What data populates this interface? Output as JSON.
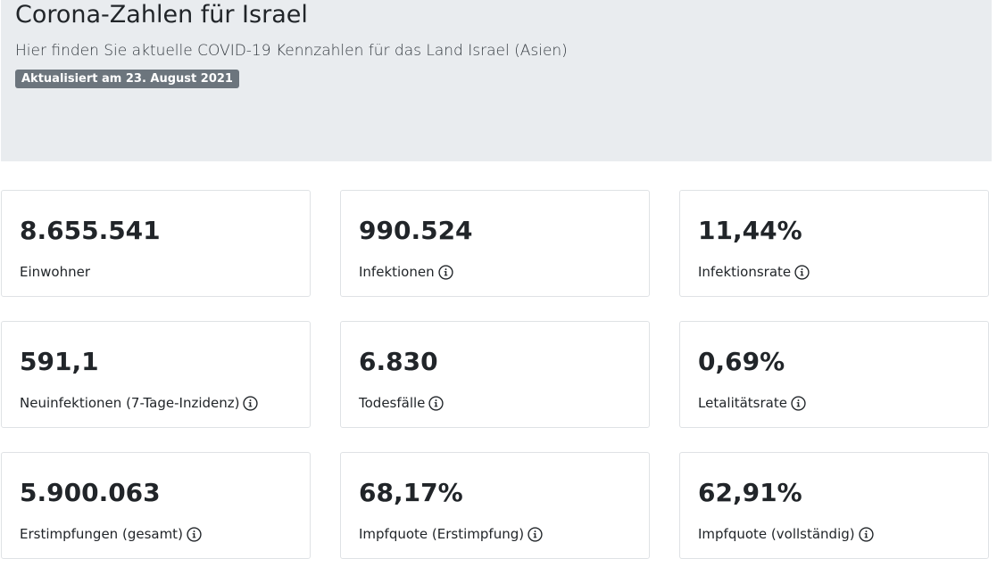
{
  "header": {
    "title": "Corona-Zahlen für Israel",
    "subtitle": "Hier finden Sie aktuelle COVID-19 Kennzahlen für das Land Israel (Asien)",
    "badge": "Aktualisiert am 23. August 2021"
  },
  "cards": [
    {
      "value": "8.655.541",
      "label": "Einwohner",
      "info_icon": false
    },
    {
      "value": "990.524",
      "label": "Infektionen",
      "info_icon": true
    },
    {
      "value": "11,44%",
      "label": "Infektionsrate",
      "info_icon": true
    },
    {
      "value": "591,1",
      "label": "Neuinfektionen (7-Tage-Inzidenz)",
      "info_icon": true
    },
    {
      "value": "6.830",
      "label": "Todesfälle",
      "info_icon": true
    },
    {
      "value": "0,69%",
      "label": "Letalitätsrate",
      "info_icon": true
    },
    {
      "value": "5.900.063",
      "label": "Erstimpfungen (gesamt)",
      "info_icon": true
    },
    {
      "value": "68,17%",
      "label": "Impfquote (Erstimpfung)",
      "info_icon": true
    },
    {
      "value": "62,91%",
      "label": "Impfquote (vollständig)",
      "info_icon": true
    }
  ],
  "icons": {
    "info": "info-circle-icon"
  },
  "colors": {
    "header_background": "#e9ecef",
    "badge_background": "#6c757d",
    "card_border": "#dfe2e5",
    "text": "#212529"
  }
}
